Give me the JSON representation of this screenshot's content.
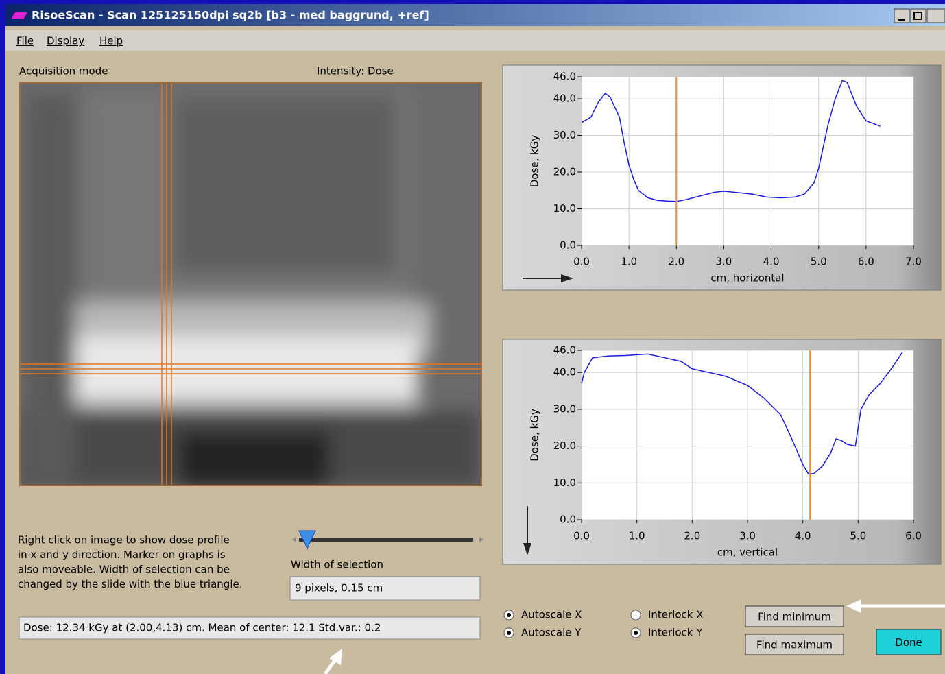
{
  "window": {
    "title": "RisoeScan - Scan 125125150dpi sq2b [b3 - med baggrund, +ref]"
  },
  "menu": [
    "File",
    "Display",
    "Help"
  ],
  "image_panel": {
    "mode_label": "Acquisition mode",
    "intensity_label": "Intensity: Dose"
  },
  "instructions": [
    "Right click on image to show dose profile",
    "in x and y direction. Marker on graphs is",
    "also moveable. Width of selection can be",
    "changed by the slide with the blue triangle."
  ],
  "width_label": "Width of selection",
  "width_value": "9 pixels, 0.15 cm",
  "status": "Dose: 12.34 kGy at (2.00,4.13) cm. Mean of center: 12.1  Std.var.: 0.2",
  "options": [
    {
      "label": "Autoscale X",
      "checked": true
    },
    {
      "label": "Autoscale Y",
      "checked": true
    },
    {
      "label": "Interlock X",
      "checked": false
    },
    {
      "label": "Interlock Y",
      "checked": true
    }
  ],
  "buttons": [
    "Find minimum",
    "Find maximum",
    "Done"
  ],
  "chart_data": [
    {
      "type": "line",
      "x_label": "cm, horizontal",
      "y_label": "Dose, kGy",
      "color": "#1a1adc",
      "cursor_color": "#f08a30",
      "cursor_x": 2.0,
      "x": [
        0.0,
        0.2,
        0.35,
        0.5,
        0.6,
        0.8,
        0.9,
        1.0,
        1.1,
        1.2,
        1.4,
        1.6,
        1.8,
        2.0,
        2.2,
        2.5,
        2.8,
        3.0,
        3.3,
        3.6,
        3.9,
        4.2,
        4.5,
        4.7,
        4.9,
        5.0,
        5.1,
        5.2,
        5.35,
        5.5,
        5.6,
        5.8,
        6.0,
        6.1,
        6.3
      ],
      "values": [
        33.5,
        35,
        39,
        41.5,
        40.5,
        35,
        28,
        22,
        18,
        15,
        13,
        12.3,
        12.1,
        12,
        12.5,
        13.5,
        14.5,
        14.8,
        14.4,
        14,
        13.2,
        13,
        13.2,
        14,
        17,
        21,
        27,
        33,
        40,
        45,
        44.5,
        38,
        34,
        33.5,
        32.5
      ],
      "xlim": [
        0,
        7
      ],
      "xticks": [
        {
          "value": 0,
          "label": "0.0"
        },
        {
          "value": 1,
          "label": "1.0"
        },
        {
          "value": 2,
          "label": "2.0"
        },
        {
          "value": 3,
          "label": "3.0"
        },
        {
          "value": 4,
          "label": "4.0"
        },
        {
          "value": 5,
          "label": "5.0"
        },
        {
          "value": 6,
          "label": "6.0"
        },
        {
          "value": 7,
          "label": "7.0"
        }
      ],
      "ylim": [
        0,
        46
      ],
      "yticks": [
        {
          "value": 0,
          "label": "0.0"
        },
        {
          "value": 10,
          "label": "10.0"
        },
        {
          "value": 20,
          "label": "20.0"
        },
        {
          "value": 30,
          "label": "30.0"
        },
        {
          "value": 40,
          "label": "40.0"
        },
        {
          "value": 46,
          "label": "46.0"
        }
      ],
      "grid": true
    },
    {
      "type": "line",
      "x_label": "cm, vertical",
      "y_label": "Dose, kGy",
      "color": "#1a1adc",
      "cursor_color": "#f08a30",
      "cursor_x": 4.13,
      "x": [
        0,
        0.05,
        0.2,
        0.5,
        0.8,
        1.0,
        1.2,
        1.5,
        1.8,
        2.0,
        2.3,
        2.6,
        3.0,
        3.3,
        3.6,
        3.8,
        4.0,
        4.1,
        4.2,
        4.35,
        4.5,
        4.6,
        4.7,
        4.8,
        4.95,
        5.05,
        5.2,
        5.4,
        5.6,
        5.8
      ],
      "values": [
        37,
        40,
        44,
        44.5,
        44.6,
        44.8,
        45,
        44,
        43,
        41,
        40,
        39,
        36.5,
        33,
        28.5,
        22,
        15,
        12.5,
        12.5,
        14.5,
        18,
        22,
        21.5,
        20.5,
        20,
        30,
        34,
        37,
        41,
        45.5
      ],
      "xlim": [
        0,
        6
      ],
      "xticks": [
        {
          "value": 0,
          "label": "0.0"
        },
        {
          "value": 1,
          "label": "1.0"
        },
        {
          "value": 2,
          "label": "2.0"
        },
        {
          "value": 3,
          "label": "3.0"
        },
        {
          "value": 4,
          "label": "4.0"
        },
        {
          "value": 5,
          "label": "5.0"
        },
        {
          "value": 6,
          "label": "6.0"
        }
      ],
      "ylim": [
        0,
        46
      ],
      "yticks": [
        {
          "value": 0,
          "label": "0.0"
        },
        {
          "value": 10,
          "label": "10.0"
        },
        {
          "value": 20,
          "label": "20.0"
        },
        {
          "value": 30,
          "label": "30.0"
        },
        {
          "value": 40,
          "label": "40.0"
        },
        {
          "value": 46,
          "label": "46.0"
        }
      ],
      "grid": true
    }
  ]
}
